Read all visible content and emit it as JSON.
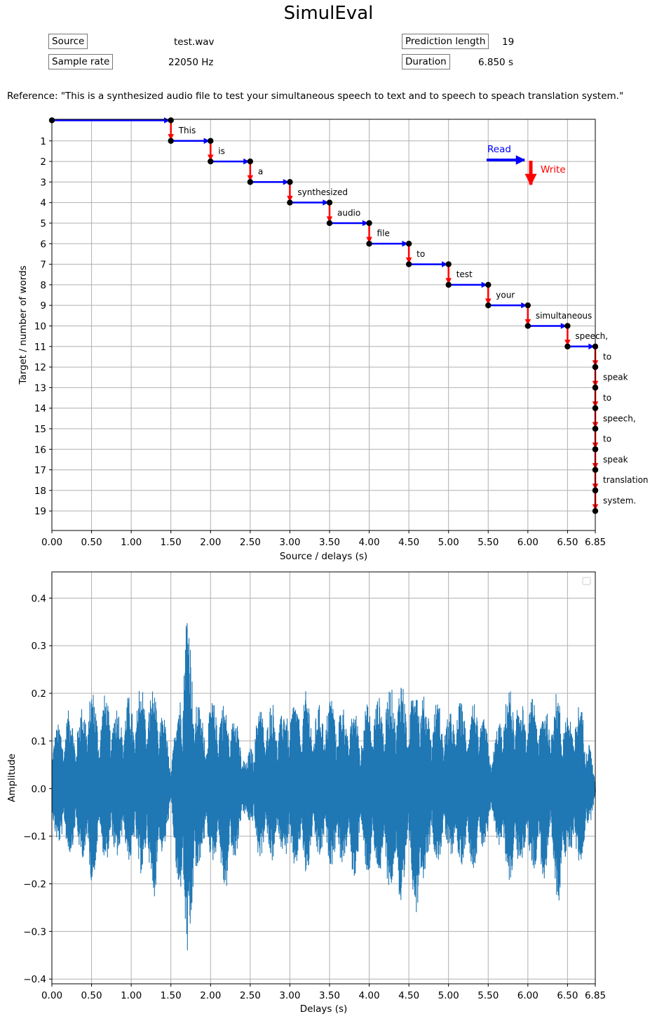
{
  "header": {
    "title": "SimulEval",
    "source_label": "Source",
    "source_value": "test.wav",
    "sample_rate_label": "Sample rate",
    "sample_rate_value": "22050 Hz",
    "prediction_length_label": "Prediction length",
    "prediction_length_value": "19",
    "duration_label": "Duration",
    "duration_value": "6.850 s",
    "reference": "Reference: \"This is a synthesized audio file to test your simultaneous speech to text and to speech to speach translation system.\""
  },
  "legend": {
    "read_label": "Read",
    "write_label": "Write",
    "read_color": "#0000ff",
    "write_color": "#ff0000"
  },
  "chart_data": [
    {
      "type": "line",
      "xlabel": "Source / delays (s)",
      "ylabel": "Target / number of words",
      "xlim": [
        0,
        6.85
      ],
      "ylim": [
        19.95,
        -0.05
      ],
      "y_inverted": true,
      "grid": true,
      "xticks": [
        0,
        0.5,
        1.0,
        1.5,
        2.0,
        2.5,
        3.0,
        3.5,
        4.0,
        4.5,
        5.0,
        5.5,
        6.0,
        6.5,
        6.85
      ],
      "xtick_labels": [
        "0.00",
        "0.50",
        "1.00",
        "1.50",
        "2.00",
        "2.50",
        "3.00",
        "3.50",
        "4.00",
        "4.50",
        "5.00",
        "5.50",
        "6.00",
        "6.50",
        "6.85"
      ],
      "yticks": [
        1,
        2,
        3,
        4,
        5,
        6,
        7,
        8,
        9,
        10,
        11,
        12,
        13,
        14,
        15,
        16,
        17,
        18,
        19
      ],
      "delays": [
        1.5,
        2.0,
        2.5,
        3.0,
        3.5,
        4.0,
        4.5,
        5.0,
        5.5,
        6.0,
        6.5,
        6.85,
        6.85,
        6.85,
        6.85,
        6.85,
        6.85,
        6.85,
        6.85
      ],
      "words": [
        "This",
        "is",
        "a",
        "synthesized",
        "audio",
        "file",
        "to",
        "test",
        "your",
        "simultaneous",
        "speech,",
        "to",
        "speak",
        "to",
        "speech,",
        "to",
        "speak",
        "translation",
        "system."
      ]
    },
    {
      "type": "line",
      "xlabel": "Delays (s)",
      "ylabel": "Amplitude",
      "xlim": [
        0,
        6.85
      ],
      "ylim": [
        -0.41,
        0.455
      ],
      "grid": true,
      "legend": "top-right",
      "color": "#1f77b4",
      "xticks": [
        0,
        0.5,
        1.0,
        1.5,
        2.0,
        2.5,
        3.0,
        3.5,
        4.0,
        4.5,
        5.0,
        5.5,
        6.0,
        6.5,
        6.85
      ],
      "xtick_labels": [
        "0.00",
        "0.50",
        "1.00",
        "1.50",
        "2.00",
        "2.50",
        "3.00",
        "3.50",
        "4.00",
        "4.50",
        "5.00",
        "5.50",
        "6.00",
        "6.50",
        "6.85"
      ],
      "yticks": [
        -0.4,
        -0.3,
        -0.2,
        -0.1,
        0.0,
        0.1,
        0.2,
        0.3,
        0.4
      ],
      "ytick_labels": [
        "−0.4",
        "−0.3",
        "−0.2",
        "−0.1",
        "0.0",
        "0.1",
        "0.2",
        "0.3",
        "0.4"
      ],
      "envelope": [
        [
          0.0,
          0.12,
          -0.1
        ],
        [
          0.1,
          0.14,
          -0.12
        ],
        [
          0.2,
          0.17,
          -0.14
        ],
        [
          0.3,
          0.15,
          -0.13
        ],
        [
          0.4,
          0.18,
          -0.15
        ],
        [
          0.48,
          0.23,
          -0.22
        ],
        [
          0.58,
          0.17,
          -0.14
        ],
        [
          0.66,
          0.2,
          -0.15
        ],
        [
          0.75,
          0.19,
          -0.16
        ],
        [
          0.85,
          0.17,
          -0.14
        ],
        [
          0.95,
          0.2,
          -0.15
        ],
        [
          1.03,
          0.18,
          -0.16
        ],
        [
          1.1,
          0.23,
          -0.18
        ],
        [
          1.2,
          0.21,
          -0.18
        ],
        [
          1.3,
          0.21,
          -0.24
        ],
        [
          1.4,
          0.17,
          -0.14
        ],
        [
          1.5,
          0.06,
          -0.05
        ],
        [
          1.6,
          0.2,
          -0.25
        ],
        [
          1.7,
          0.41,
          -0.37
        ],
        [
          1.78,
          0.27,
          -0.3
        ],
        [
          1.88,
          0.15,
          -0.13
        ],
        [
          2.0,
          0.18,
          -0.15
        ],
        [
          2.1,
          0.2,
          -0.17
        ],
        [
          2.2,
          0.17,
          -0.23
        ],
        [
          2.32,
          0.17,
          -0.14
        ],
        [
          2.45,
          0.05,
          -0.05
        ],
        [
          2.6,
          0.18,
          -0.15
        ],
        [
          2.7,
          0.17,
          -0.14
        ],
        [
          2.8,
          0.19,
          -0.16
        ],
        [
          2.9,
          0.16,
          -0.13
        ],
        [
          3.0,
          0.2,
          -0.18
        ],
        [
          3.1,
          0.18,
          -0.16
        ],
        [
          3.2,
          0.21,
          -0.19
        ],
        [
          3.3,
          0.17,
          -0.14
        ],
        [
          3.4,
          0.18,
          -0.15
        ],
        [
          3.5,
          0.2,
          -0.16
        ],
        [
          3.6,
          0.19,
          -0.17
        ],
        [
          3.7,
          0.17,
          -0.15
        ],
        [
          3.8,
          0.17,
          -0.2
        ],
        [
          3.9,
          0.15,
          -0.13
        ],
        [
          4.0,
          0.19,
          -0.2
        ],
        [
          4.1,
          0.19,
          -0.17
        ],
        [
          4.2,
          0.21,
          -0.22
        ],
        [
          4.3,
          0.22,
          -0.21
        ],
        [
          4.4,
          0.24,
          -0.29
        ],
        [
          4.5,
          0.18,
          -0.15
        ],
        [
          4.62,
          0.28,
          -0.32
        ],
        [
          4.72,
          0.17,
          -0.14
        ],
        [
          4.82,
          0.19,
          -0.16
        ],
        [
          4.92,
          0.18,
          -0.15
        ],
        [
          5.0,
          0.15,
          -0.13
        ],
        [
          5.1,
          0.2,
          -0.18
        ],
        [
          5.2,
          0.17,
          -0.15
        ],
        [
          5.3,
          0.19,
          -0.17
        ],
        [
          5.4,
          0.18,
          -0.16
        ],
        [
          5.55,
          0.08,
          -0.07
        ],
        [
          5.7,
          0.2,
          -0.17
        ],
        [
          5.8,
          0.22,
          -0.21
        ],
        [
          5.9,
          0.19,
          -0.16
        ],
        [
          6.0,
          0.18,
          -0.15
        ],
        [
          6.1,
          0.2,
          -0.18
        ],
        [
          6.2,
          0.17,
          -0.2
        ],
        [
          6.3,
          0.19,
          -0.16
        ],
        [
          6.4,
          0.21,
          -0.27
        ],
        [
          6.5,
          0.15,
          -0.13
        ],
        [
          6.6,
          0.19,
          -0.17
        ],
        [
          6.7,
          0.17,
          -0.15
        ],
        [
          6.78,
          0.1,
          -0.08
        ],
        [
          6.85,
          0.01,
          -0.01
        ]
      ]
    }
  ]
}
